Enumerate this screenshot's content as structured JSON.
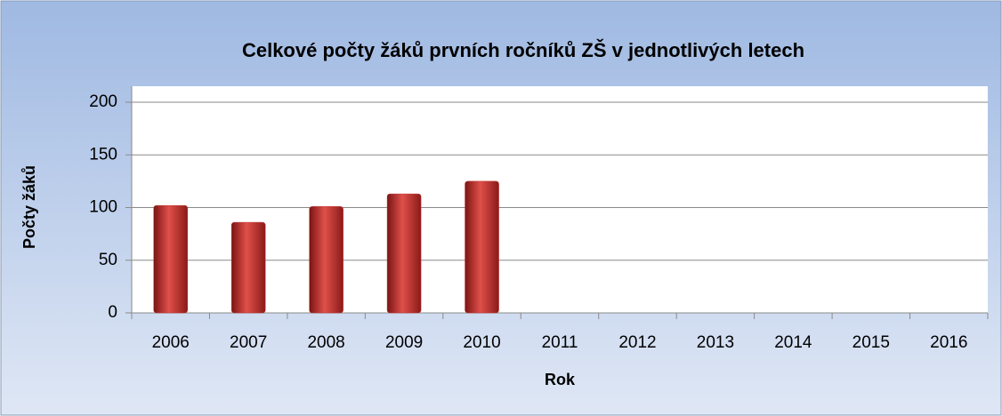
{
  "chart_data": {
    "type": "bar",
    "title": "Celkové počty žáků prvních ročníků ZŠ v jednotlivých letech",
    "x_label": "Rok",
    "y_label": "Počty žáků",
    "categories": [
      "2006",
      "2007",
      "2008",
      "2009",
      "2010",
      "2011",
      "2012",
      "2013",
      "2014",
      "2015",
      "2016"
    ],
    "values": [
      102,
      86,
      101,
      113,
      125,
      null,
      null,
      null,
      null,
      null,
      null
    ],
    "color": "#c0302c",
    "ylim": [
      0,
      200
    ],
    "yticks": [
      0,
      50,
      100,
      150,
      200
    ],
    "grid": true
  }
}
